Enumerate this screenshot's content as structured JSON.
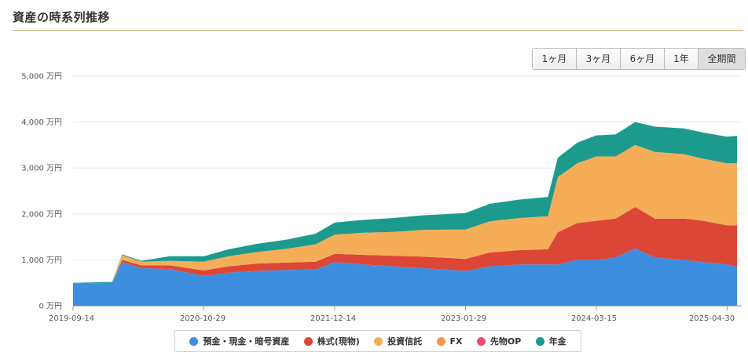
{
  "header": {
    "title": "資産の時系列推移"
  },
  "range_buttons": [
    {
      "label": "1ヶ月",
      "active": false
    },
    {
      "label": "3ヶ月",
      "active": false
    },
    {
      "label": "6ヶ月",
      "active": false
    },
    {
      "label": "1年",
      "active": false
    },
    {
      "label": "全期間",
      "active": true
    }
  ],
  "chart_data": {
    "type": "area",
    "stacked": true,
    "title": "資産の時系列推移",
    "xlabel": "",
    "ylabel": "",
    "ylim": [
      0,
      5000
    ],
    "y_ticks": [
      "0 万円",
      "1,000 万円",
      "2,000 万円",
      "3,000 万円",
      "4,000 万円",
      "5,000 万円"
    ],
    "x_ticks": [
      "2019-09-14",
      "2020-10-29",
      "2021-12-14",
      "2023-01-29",
      "2024-03-15",
      "2025-04-30"
    ],
    "grid": true,
    "legend_position": "bottom",
    "x": [
      "2019-09-14",
      "2019-11-15",
      "2020-01-15",
      "2020-02-15",
      "2020-04-15",
      "2020-07-15",
      "2020-10-29",
      "2021-01-15",
      "2021-04-15",
      "2021-07-15",
      "2021-10-15",
      "2021-12-14",
      "2022-03-15",
      "2022-06-15",
      "2022-09-15",
      "2022-12-15",
      "2023-01-29",
      "2023-04-15",
      "2023-07-15",
      "2023-10-15",
      "2023-11-15",
      "2024-01-15",
      "2024-03-15",
      "2024-05-15",
      "2024-07-15",
      "2024-09-15",
      "2024-12-15",
      "2025-02-15",
      "2025-04-30",
      "2025-05-31"
    ],
    "series": [
      {
        "name": "預金・現金・暗号資産",
        "color": "#3d8ede",
        "values": [
          480,
          490,
          500,
          950,
          820,
          800,
          650,
          720,
          760,
          780,
          790,
          950,
          900,
          860,
          820,
          780,
          760,
          860,
          900,
          900,
          900,
          1000,
          1000,
          1050,
          1250,
          1050,
          1000,
          950,
          900,
          850
        ]
      },
      {
        "name": "株式(現物)",
        "color": "#dc4637",
        "values": [
          0,
          0,
          0,
          50,
          60,
          80,
          120,
          140,
          160,
          160,
          170,
          180,
          210,
          230,
          250,
          260,
          260,
          300,
          310,
          330,
          700,
          800,
          850,
          850,
          900,
          850,
          900,
          900,
          850,
          900
        ]
      },
      {
        "name": "投資信託",
        "color": "#f6ad58",
        "values": [
          0,
          0,
          0,
          100,
          80,
          100,
          190,
          220,
          250,
          300,
          380,
          420,
          480,
          520,
          580,
          620,
          640,
          680,
          700,
          720,
          1200,
          1300,
          1400,
          1350,
          1350,
          1450,
          1400,
          1350,
          1350,
          1350
        ]
      },
      {
        "name": "FX",
        "color": "#f29547",
        "values": [
          0,
          0,
          0,
          0,
          0,
          0,
          0,
          0,
          0,
          0,
          0,
          0,
          0,
          0,
          0,
          0,
          0,
          0,
          0,
          0,
          0,
          0,
          0,
          0,
          0,
          0,
          0,
          0,
          0,
          0
        ]
      },
      {
        "name": "先物OP",
        "color": "#ee4c6b",
        "values": [
          0,
          0,
          0,
          0,
          0,
          0,
          0,
          0,
          0,
          0,
          0,
          0,
          0,
          0,
          0,
          0,
          0,
          0,
          0,
          0,
          0,
          0,
          0,
          0,
          0,
          0,
          0,
          0,
          0,
          0
        ]
      },
      {
        "name": "年金",
        "color": "#1d9a8e",
        "values": [
          20,
          20,
          20,
          20,
          20,
          100,
          120,
          150,
          180,
          200,
          230,
          260,
          280,
          300,
          320,
          340,
          360,
          380,
          400,
          420,
          420,
          450,
          460,
          480,
          500,
          550,
          560,
          570,
          580,
          600
        ]
      }
    ]
  }
}
